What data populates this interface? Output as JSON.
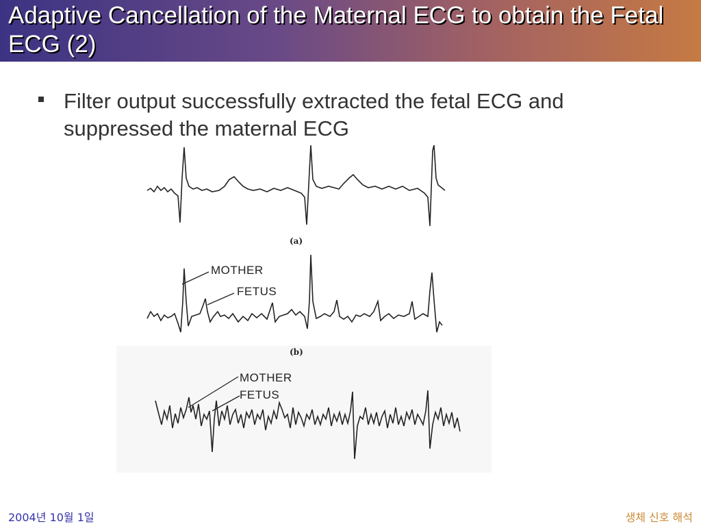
{
  "slide": {
    "title": "Adaptive Cancellation of the Maternal ECG to obtain the Fetal ECG (2)",
    "bullets": [
      "Filter output successfully extracted the fetal ECG and suppressed the maternal ECG"
    ]
  },
  "figure": {
    "panel_a_label": "(a)",
    "panel_b_label": "(b)",
    "panel_b_mother": "MOTHER",
    "panel_b_fetus": "FETUS",
    "panel_c_mother": "MOTHER",
    "panel_c_fetus": "FETUS"
  },
  "footer": {
    "date": "2004년 10월 1일",
    "course": "생체 신호 해석"
  },
  "colors": {
    "title_gradient_start": "#3c3383",
    "title_gradient_end": "#c67a43",
    "footer_date": "#3333aa",
    "footer_course": "#cc8833"
  }
}
